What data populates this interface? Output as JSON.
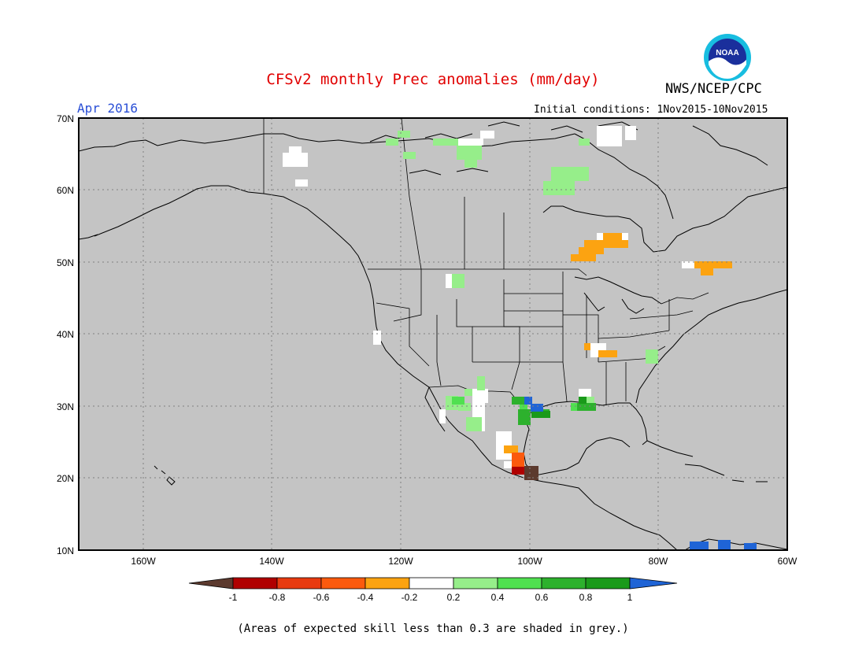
{
  "title": "CFSv2 monthly Prec anomalies (mm/day)",
  "org": "NWS/NCEP/CPC",
  "logo": "NOAA",
  "valid": "Apr 2016",
  "initial_conditions": "Initial conditions: 1Nov2015-10Nov2015",
  "footnote": "(Areas of expected skill less than 0.3 are shaded in grey.)",
  "colors": {
    "skill_mask": "#c4c4c4",
    "lt_-1": "#5c3a2e",
    "-1_-0.8": "#b00000",
    "-0.8_-0.6": "#e83a10",
    "-0.6_-0.4": "#fb5a0e",
    "-0.4_-0.2": "#fca311",
    "-0.2_0.2": "#ffffff",
    "0.2_0.4": "#96ee8a",
    "0.4_0.6": "#50e050",
    "0.6_0.8": "#2db12d",
    "0.8_1": "#1a9a1a",
    "gt_1": "#1f64d6"
  },
  "map": {
    "lon_range": [
      -170,
      -60
    ],
    "lat_range": [
      10,
      70
    ],
    "lat_ticks": [
      "70N",
      "60N",
      "50N",
      "40N",
      "30N",
      "20N",
      "10N"
    ],
    "lon_ticks": [
      "160W",
      "140W",
      "120W",
      "100W",
      "80W",
      "60W"
    ]
  },
  "colorbar": {
    "labels": [
      "-1",
      "-0.8",
      "-0.6",
      "-0.4",
      "-0.2",
      "0.2",
      "0.4",
      "0.6",
      "0.8",
      "1"
    ]
  }
}
